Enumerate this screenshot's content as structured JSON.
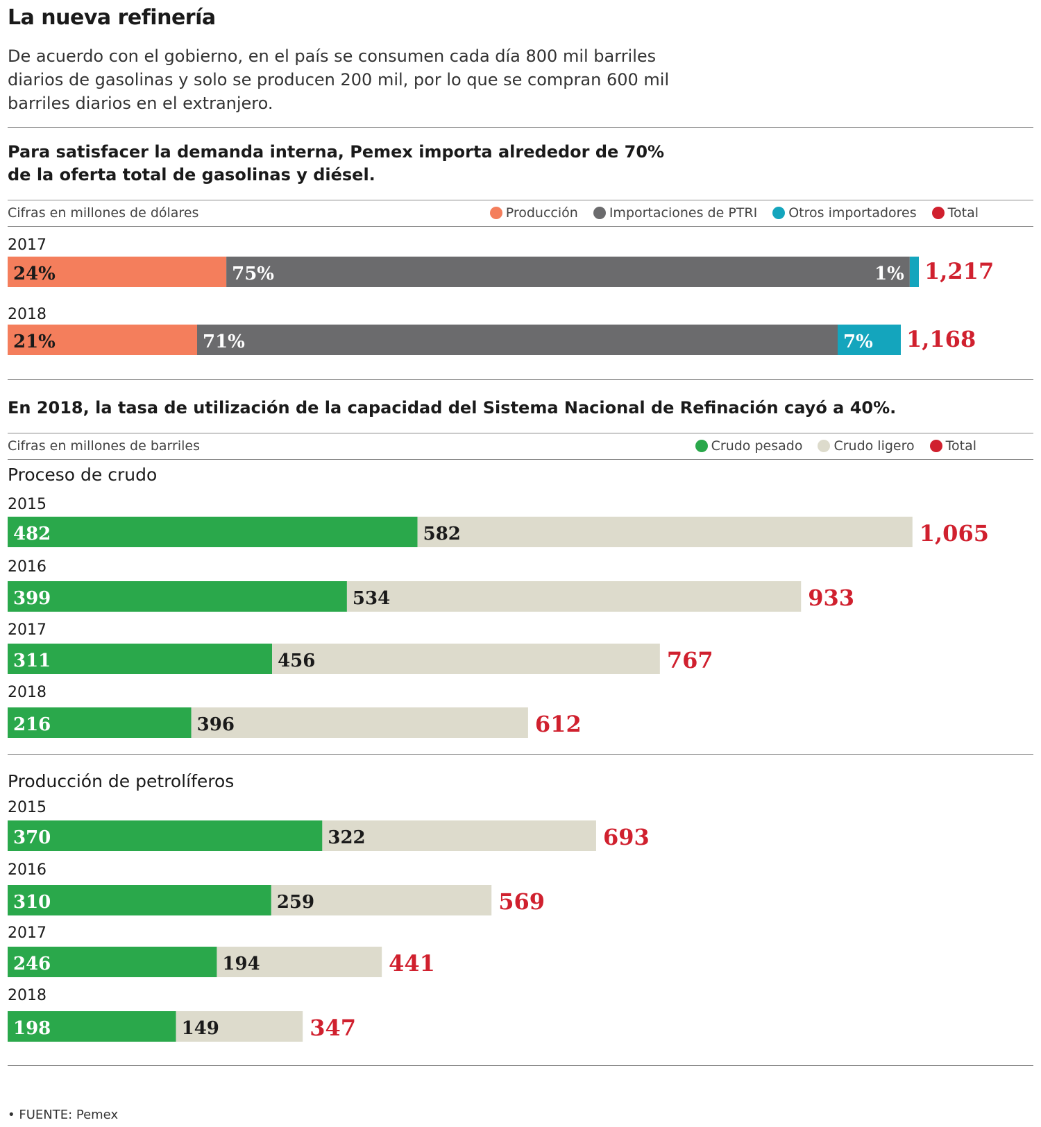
{
  "title": "La nueva refinería",
  "intro": "De acuerdo con el gobierno, en el país se consumen cada día 800 mil barriles diarios de gasolinas y solo se producen 200 mil, por lo que se compran 600 mil barriles diarios en el extranjero.",
  "source": "• FUENTE: Pemex",
  "colors": {
    "produccion": "#f47e5c",
    "ptri": "#6b6b6d",
    "otros": "#14a5bd",
    "total": "#d0202e",
    "pesado": "#2aa84b",
    "ligero": "#dddbcc"
  },
  "section1": {
    "heading": "Para satisfacer la demanda interna, Pemex importa alrededor de 70% de la oferta total de gasolinas y diésel.",
    "unit": "Cifras en millones de dólares",
    "legend": [
      "Producción",
      "Importaciones de PTRI",
      "Otros importadores",
      "Total"
    ]
  },
  "section2": {
    "heading": "En 2018, la tasa de utilización de la capacidad del Sistema Nacional de Refinación cayó a 40%.",
    "unit": "Cifras en millones de barriles",
    "legend": [
      "Crudo pesado",
      "Crudo ligero",
      "Total"
    ],
    "sub1": "Proceso de crudo",
    "sub2": "Producción de petrolíferos"
  },
  "chart_data": [
    {
      "type": "bar",
      "orientation": "horizontal",
      "stacked": "percent",
      "title": "Para satisfacer la demanda interna, Pemex importa alrededor de 70% de la oferta total de gasolinas y diésel.",
      "categories": [
        "2017",
        "2018"
      ],
      "series": [
        {
          "name": "Producción",
          "values": [
            24,
            21
          ],
          "labels": [
            "24%",
            "21%"
          ]
        },
        {
          "name": "Importaciones de PTRI",
          "values": [
            75,
            71
          ],
          "labels": [
            "75%",
            "71%"
          ]
        },
        {
          "name": "Otros importadores",
          "values": [
            1,
            7
          ],
          "labels": [
            "1%",
            "7%"
          ]
        }
      ],
      "totals": [
        1217,
        1168
      ],
      "total_labels": [
        "1,217",
        "1,168"
      ],
      "legend": "top-right"
    },
    {
      "type": "bar",
      "orientation": "horizontal",
      "stacked": true,
      "title": "Proceso de crudo",
      "categories": [
        "2015",
        "2016",
        "2017",
        "2018"
      ],
      "series": [
        {
          "name": "Crudo pesado",
          "values": [
            482,
            399,
            311,
            216
          ],
          "labels": [
            "482",
            "399",
            "311",
            "216"
          ]
        },
        {
          "name": "Crudo ligero",
          "values": [
            582,
            534,
            456,
            396
          ],
          "labels": [
            "582",
            "534",
            "456",
            "396"
          ]
        }
      ],
      "totals": [
        1065,
        933,
        767,
        612
      ],
      "total_labels": [
        "1,065",
        "933",
        "767",
        "612"
      ],
      "legend": "top-right"
    },
    {
      "type": "bar",
      "orientation": "horizontal",
      "stacked": true,
      "title": "Producción de petrolíferos",
      "categories": [
        "2015",
        "2016",
        "2017",
        "2018"
      ],
      "series": [
        {
          "name": "Crudo pesado",
          "values": [
            370,
            310,
            246,
            198
          ],
          "labels": [
            "370",
            "310",
            "246",
            "198"
          ]
        },
        {
          "name": "Crudo ligero",
          "values": [
            322,
            259,
            194,
            149
          ],
          "labels": [
            "322",
            "259",
            "194",
            "149"
          ]
        }
      ],
      "totals": [
        693,
        569,
        441,
        347
      ],
      "total_labels": [
        "693",
        "569",
        "441",
        "347"
      ],
      "legend": "top-right"
    }
  ]
}
